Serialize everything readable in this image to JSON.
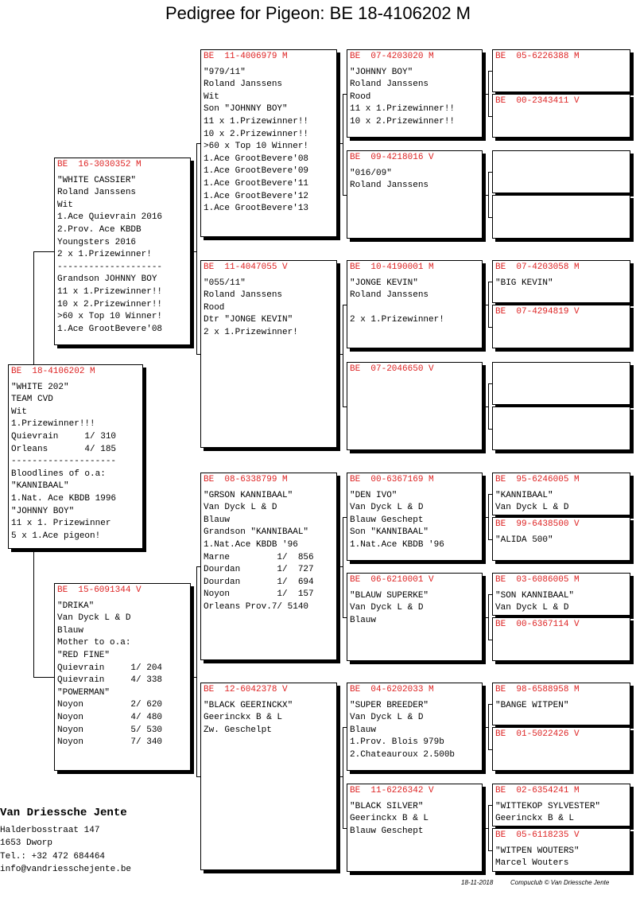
{
  "title": "Pedigree for Pigeon: BE  18-4106202 M",
  "subject": {
    "header": "BE  18-4106202 M",
    "lines": [
      "\"WHITE 202\"",
      "TEAM CVD",
      "Wit",
      "1.Prizewinner!!!",
      "Quievrain     1/ 310",
      "Orleans       4/ 185",
      "--------------------",
      "Bloodlines of o.a:",
      "\"KANNIBAAL\"",
      "1.Nat. Ace KBDB 1996",
      "\"JOHNNY BOY\"",
      "11 x 1. Prizewinner",
      "5 x 1.Ace pigeon!"
    ]
  },
  "sire": {
    "header": "BE  16-3030352 M",
    "lines": [
      "\"WHITE CASSIER\"",
      "Roland Janssens",
      "Wit",
      "1.Ace Quievrain 2016",
      "2.Prov. Ace KBDB",
      "Youngsters 2016",
      "2 x 1.Prizewinner!",
      "--------------------",
      "Grandson JOHNNY BOY",
      "11 x 1.Prizewinner!!",
      "10 x 2.Prizewinner!!",
      ">60 x Top 10 Winner!",
      "1.Ace GrootBevere'08"
    ]
  },
  "dam": {
    "header": "BE  15-6091344 V",
    "lines": [
      "\"DRIKA\"",
      "Van Dyck L & D",
      "Blauw",
      "Mother to o.a:",
      "\"RED FINE\"",
      "Quievrain     1/ 204",
      "Quievrain     4/ 338",
      "\"POWERMAN\"",
      "Noyon         2/ 620",
      "Noyon         4/ 480",
      "Noyon         5/ 530",
      "Noyon         7/ 340"
    ]
  },
  "gen2": [
    {
      "header": "BE  11-4006979 M",
      "lines": [
        "\"979/11\"",
        "Roland Janssens",
        "Wit",
        "Son \"JOHNNY BOY\"",
        "11 x 1.Prizewinner!!",
        "10 x 2.Prizewinner!!",
        ">60 x Top 10 Winner!",
        "1.Ace GrootBevere'08",
        "1.Ace GrootBevere'09",
        "1.Ace GrootBevere'11",
        "1.Ace GrootBevere'12",
        "1.Ace GrootBevere'13"
      ]
    },
    {
      "header": "BE  11-4047055 V",
      "lines": [
        "\"055/11\"",
        "Roland Janssens",
        "Rood",
        "Dtr \"JONGE KEVIN\"",
        "2 x 1.Prizewinner!"
      ]
    },
    {
      "header": "BE  08-6338799 M",
      "lines": [
        "\"GRSON KANNIBAAL\"",
        "Van Dyck L & D",
        "Blauw",
        "Grandson \"KANNIBAAL\"",
        "1.Nat.Ace KBDB '96",
        "Marne         1/  856",
        "Dourdan       1/  727",
        "Dourdan       1/  694",
        "Noyon         1/  157",
        "Orleans Prov.7/ 5140"
      ]
    },
    {
      "header": "BE  12-6042378 V",
      "lines": [
        "\"BLACK GEERINCKX\"",
        "Geerinckx B & L",
        "Zw. Geschelpt"
      ]
    }
  ],
  "gen3": [
    {
      "header": "BE  07-4203020 M",
      "lines": [
        "\"JOHNNY BOY\"",
        "Roland Janssens",
        "Rood",
        "11 x 1.Prizewinner!!",
        "10 x 2.Prizewinner!!"
      ]
    },
    {
      "header": "BE  09-4218016 V",
      "lines": [
        "\"016/09\"",
        "Roland Janssens"
      ]
    },
    {
      "header": "BE  10-4190001 M",
      "lines": [
        "\"JONGE KEVIN\"",
        "Roland Janssens",
        "2 x 1.Prizewinner!"
      ]
    },
    {
      "header": "BE  07-2046650 V"
    },
    {
      "header": "BE  00-6367169 M",
      "lines": [
        "\"DEN IVO\"",
        "Van Dyck L & D",
        "Blauw Geschept",
        "Son \"KANNIBAAL\"",
        "1.Nat.Ace KBDB '96"
      ]
    },
    {
      "header": "BE  06-6210001 V",
      "lines": [
        "\"BLAUW SUPERKE\"",
        "Van Dyck L & D",
        "Blauw"
      ]
    },
    {
      "header": "BE  04-6202033 M",
      "lines": [
        "\"SUPER BREEDER\"",
        "Van Dyck L & D",
        "Blauw",
        "1.Prov. Blois 979b",
        "2.Chateauroux 2.500b"
      ]
    },
    {
      "header": "BE  11-6226342 V",
      "lines": [
        "\"BLACK SILVER\"",
        "Geerinckx B & L",
        "Blauw Geschept"
      ]
    }
  ],
  "gen4": [
    {
      "header": "BE  05-6226388 M"
    },
    {
      "header": "BE  00-2343411 V"
    },
    null,
    null,
    {
      "header": "BE  07-4203058 M",
      "lines": [
        "\"BIG KEVIN\""
      ]
    },
    {
      "header": "BE  07-4294819 V"
    },
    null,
    null,
    {
      "header": "BE  95-6246005 M",
      "lines": [
        "\"KANNIBAAL\"",
        "Van Dyck L & D"
      ]
    },
    {
      "header": "BE  99-6438500 V",
      "lines": [
        "\"ALIDA 500\""
      ]
    },
    {
      "header": "BE  03-6086005 M",
      "lines": [
        "\"SON KANNIBAAL\"",
        "Van Dyck L & D"
      ]
    },
    {
      "header": "BE  00-6367114 V"
    },
    {
      "header": "BE  98-6588958 M",
      "lines": [
        "\"BANGE WITPEN\""
      ]
    },
    {
      "header": "BE  01-5022426 V"
    },
    {
      "header": "BE  02-6354241 M",
      "lines": [
        "\"WITTEKOP SYLVESTER\"",
        "Geerinckx B & L"
      ]
    },
    {
      "header": "BE  05-6118235 V",
      "lines": [
        "\"WITPEN WOUTERS\"",
        "Marcel Wouters"
      ]
    }
  ],
  "owner": {
    "name": "Van Driessche Jente",
    "lines": [
      "Halderbosstraat 147",
      "1653  Dworp",
      "Tel.: +32 472 684464",
      "info@vandriesschejente.be"
    ]
  },
  "footer": {
    "date": "18-11-2018",
    "credit": "Compuclub © Van Driessche Jente"
  }
}
